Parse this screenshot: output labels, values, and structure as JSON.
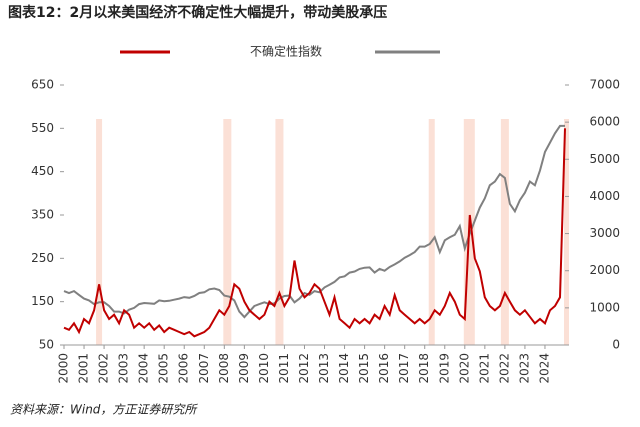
{
  "chart_data": {
    "type": "line",
    "title": "图表12：2月以来美国经济不确定性大幅提升，带动美股承压",
    "source": "资料来源：Wind，方正证券研究所",
    "xlim": [
      2000,
      2025
    ],
    "xticks": [
      2000,
      2001,
      2002,
      2003,
      2004,
      2005,
      2006,
      2007,
      2008,
      2009,
      2010,
      2011,
      2012,
      2013,
      2014,
      2015,
      2016,
      2017,
      2018,
      2019,
      2020,
      2021,
      2022,
      2023,
      2024
    ],
    "ylim": [
      50,
      650
    ],
    "yticks": [
      50,
      150,
      250,
      350,
      450,
      550,
      650
    ],
    "y2lim": [
      0,
      7000
    ],
    "y2ticks": [
      0,
      1000,
      2000,
      3000,
      4000,
      5000,
      6000,
      7000
    ],
    "shaded_periods": [
      [
        2001.6,
        2001.9
      ],
      [
        2007.95,
        2008.35
      ],
      [
        2010.55,
        2010.95
      ],
      [
        2018.2,
        2018.5
      ],
      [
        2019.95,
        2020.5
      ],
      [
        2021.8,
        2022.2
      ],
      [
        2024.95,
        2025.2
      ]
    ],
    "shade_color": "#fbe0d6",
    "x": [
      2000,
      2000.25,
      2000.5,
      2000.75,
      2001,
      2001.25,
      2001.5,
      2001.75,
      2002,
      2002.25,
      2002.5,
      2002.75,
      2003,
      2003.25,
      2003.5,
      2003.75,
      2004,
      2004.25,
      2004.5,
      2004.75,
      2005,
      2005.25,
      2005.5,
      2005.75,
      2006,
      2006.25,
      2006.5,
      2006.75,
      2007,
      2007.25,
      2007.5,
      2007.75,
      2008,
      2008.25,
      2008.5,
      2008.75,
      2009,
      2009.25,
      2009.5,
      2009.75,
      2010,
      2010.25,
      2010.5,
      2010.75,
      2011,
      2011.25,
      2011.5,
      2011.75,
      2012,
      2012.25,
      2012.5,
      2012.75,
      2013,
      2013.25,
      2013.5,
      2013.75,
      2014,
      2014.25,
      2014.5,
      2014.75,
      2015,
      2015.25,
      2015.5,
      2015.75,
      2016,
      2016.25,
      2016.5,
      2016.75,
      2017,
      2017.25,
      2017.5,
      2017.75,
      2018,
      2018.25,
      2018.5,
      2018.75,
      2019,
      2019.25,
      2019.5,
      2019.75,
      2020,
      2020.25,
      2020.5,
      2020.75,
      2021,
      2021.25,
      2021.5,
      2021.75,
      2022,
      2022.25,
      2022.5,
      2022.75,
      2023,
      2023.25,
      2023.5,
      2023.75,
      2024,
      2024.25,
      2024.5,
      2024.75,
      2025
    ],
    "series": [
      {
        "name": "不确定性指数",
        "color": "#c00000",
        "values": [
          90,
          85,
          100,
          80,
          110,
          100,
          130,
          190,
          130,
          110,
          120,
          100,
          130,
          120,
          90,
          100,
          90,
          100,
          85,
          95,
          80,
          90,
          85,
          80,
          75,
          80,
          70,
          75,
          80,
          90,
          110,
          130,
          120,
          140,
          190,
          180,
          150,
          130,
          120,
          110,
          120,
          150,
          140,
          170,
          140,
          160,
          245,
          180,
          160,
          170,
          190,
          180,
          150,
          120,
          160,
          110,
          100,
          90,
          110,
          100,
          110,
          100,
          120,
          110,
          140,
          120,
          165,
          130,
          120,
          110,
          100,
          110,
          100,
          110,
          130,
          120,
          140,
          170,
          150,
          120,
          110,
          350,
          250,
          220,
          160,
          140,
          130,
          140,
          170,
          150,
          130,
          120,
          130,
          115,
          100,
          110,
          100,
          130,
          140,
          160,
          550
        ]
      },
      {
        "color": "#808080",
        "axis": "y2",
        "values": [
          1450,
          1400,
          1450,
          1350,
          1250,
          1200,
          1100,
          1150,
          1150,
          1050,
          900,
          900,
          850,
          950,
          1000,
          1100,
          1130,
          1120,
          1110,
          1200,
          1180,
          1190,
          1220,
          1250,
          1290,
          1270,
          1320,
          1400,
          1420,
          1500,
          1520,
          1480,
          1330,
          1300,
          1200,
          900,
          750,
          900,
          1050,
          1100,
          1150,
          1100,
          1120,
          1250,
          1320,
          1330,
          1150,
          1250,
          1400,
          1350,
          1450,
          1420,
          1550,
          1620,
          1700,
          1820,
          1850,
          1950,
          1980,
          2050,
          2080,
          2090,
          1950,
          2050,
          2000,
          2100,
          2170,
          2250,
          2350,
          2420,
          2500,
          2650,
          2650,
          2720,
          2900,
          2500,
          2820,
          2900,
          2970,
          3200,
          2600,
          3000,
          3350,
          3700,
          3950,
          4300,
          4400,
          4600,
          4500,
          3800,
          3600,
          3900,
          4100,
          4400,
          4300,
          4700,
          5200,
          5450,
          5700,
          5900,
          5900
        ]
      }
    ]
  }
}
